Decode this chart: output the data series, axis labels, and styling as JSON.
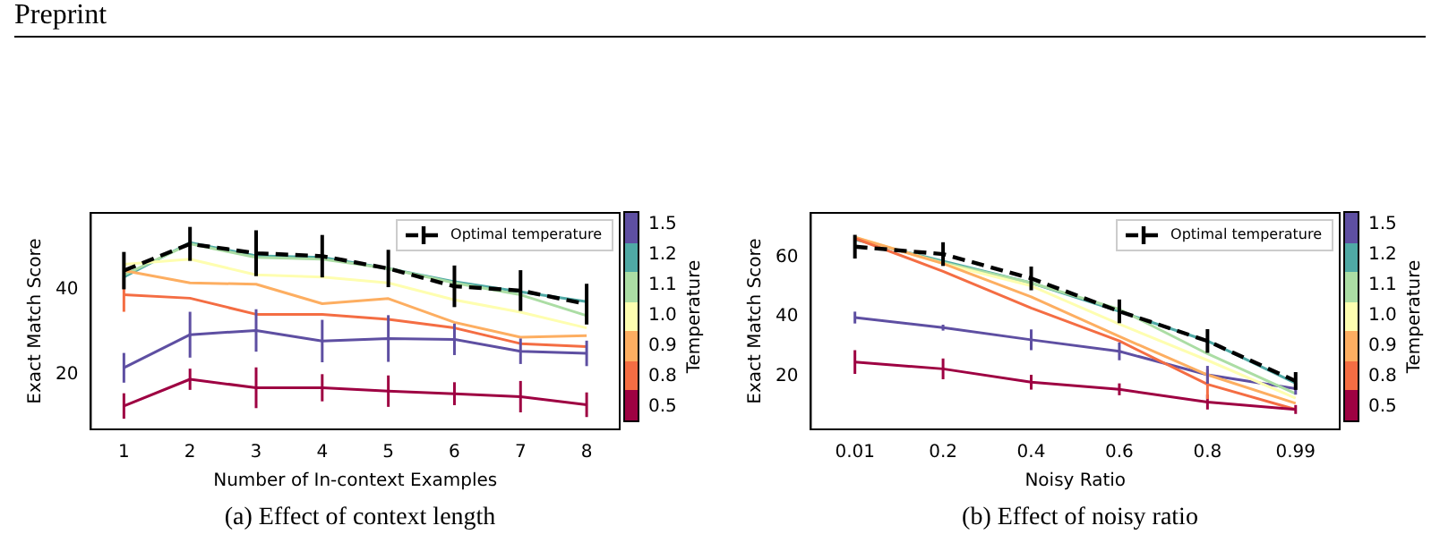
{
  "chart_data": [
    {
      "type": "line",
      "title": "(a) Effect of context length",
      "annotations": [
        "Preprint"
      ],
      "xlabel": "Number of In-context Examples",
      "ylabel": "Exact Match Score",
      "legend_title": "Temperature",
      "legend": "top right",
      "categories": [
        "1",
        "2",
        "3",
        "4",
        "5",
        "6",
        "7",
        "8"
      ],
      "ylim": [
        7,
        58
      ],
      "yticks": [
        20,
        40
      ],
      "series": [
        {
          "name": "0.5",
          "color": "#9e0142",
          "values": [
            12.5,
            18.8,
            16.8,
            16.8,
            16.0,
            15.4,
            14.7,
            12.8
          ],
          "errors": [
            3,
            2.5,
            4.8,
            3.2,
            3.7,
            2.7,
            3.7,
            2.9
          ]
        },
        {
          "name": "0.8",
          "color": "#f46d43",
          "values": [
            38.7,
            37.9,
            34.1,
            34.1,
            32.9,
            30.9,
            27.2,
            26.5
          ],
          "errors": [
            4,
            null,
            null,
            null,
            null,
            null,
            null,
            null
          ]
        },
        {
          "name": "0.9",
          "color": "#fdae61",
          "values": [
            44.4,
            41.5,
            41.2,
            36.6,
            37.8,
            32.2,
            28.7,
            29.1
          ]
        },
        {
          "name": "1.0",
          "color": "#fefeb0",
          "values": [
            45.9,
            47.1,
            43.4,
            42.9,
            41.5,
            37.5,
            34.6,
            30.9
          ]
        },
        {
          "name": "1.1",
          "color": "#abdda4",
          "values": [
            43.4,
            50.7,
            47.5,
            47.1,
            44.9,
            41.5,
            38.7,
            33.8
          ]
        },
        {
          "name": "1.2",
          "color": "#4fa9a5",
          "values": [
            42.9,
            51.0,
            47.9,
            47.5,
            44.9,
            41.8,
            39.4,
            37.1
          ]
        },
        {
          "name": "1.5",
          "color": "#5e4fa2",
          "values": [
            21.5,
            29.3,
            30.3,
            27.8,
            28.4,
            28.2,
            25.4,
            24.9
          ],
          "errors": [
            3.5,
            5.4,
            5,
            5,
            5.5,
            3.7,
            3,
            3
          ]
        },
        {
          "name": "Optimal temperature",
          "color": "#000000",
          "line_style": "dashed",
          "values": [
            44.4,
            50.7,
            48.5,
            47.8,
            44.9,
            40.7,
            39.7,
            36.5
          ],
          "errors": [
            4.4,
            4,
            5.4,
            5,
            4.4,
            4.9,
            4.8,
            4.8
          ]
        }
      ]
    },
    {
      "type": "line",
      "title": "(b) Effect of noisy ratio",
      "xlabel": "Noisy Ratio",
      "ylabel": "Exact Match Score",
      "legend_title": "Temperature",
      "legend": "top right",
      "categories": [
        "0.01",
        "0.2",
        "0.4",
        "0.6",
        "0.8",
        "0.99"
      ],
      "ylim": [
        2,
        75
      ],
      "yticks": [
        20,
        40,
        60
      ],
      "series": [
        {
          "name": "0.5",
          "color": "#9e0142",
          "values": [
            24.7,
            22.4,
            17.9,
            15.5,
            11.2,
            8.7
          ],
          "errors": [
            4,
            3.5,
            2.5,
            2,
            2.5,
            1.5
          ]
        },
        {
          "name": "0.8",
          "color": "#f46d43",
          "values": [
            66.4,
            55.3,
            42.9,
            31.8,
            17.2,
            8.7
          ],
          "errors": [
            null,
            null,
            null,
            null,
            5,
            null
          ]
        },
        {
          "name": "0.9",
          "color": "#fdae61",
          "values": [
            66.8,
            57.9,
            46.7,
            33.3,
            20.4,
            10.8
          ]
        },
        {
          "name": "1.0",
          "color": "#fefeb0",
          "values": [
            66.8,
            57.9,
            50.4,
            37.5,
            25.3,
            12.5
          ]
        },
        {
          "name": "1.1",
          "color": "#abdda4",
          "values": [
            66.4,
            58.3,
            51.4,
            42.5,
            27.5,
            14.0
          ]
        },
        {
          "name": "1.2",
          "color": "#4fa9a5",
          "values": [
            66.0,
            58.7,
            51.4,
            41.8,
            31.8,
            17.6
          ]
        },
        {
          "name": "1.5",
          "color": "#5e4fa2",
          "values": [
            39.7,
            36.3,
            32.2,
            28.3,
            20.4,
            15.7
          ],
          "errors": [
            2,
            1,
            3.5,
            3,
            3,
            2
          ]
        },
        {
          "name": "Optimal temperature",
          "color": "#000000",
          "line_style": "dashed",
          "values": [
            63.6,
            61.1,
            52.9,
            41.8,
            31.8,
            18.3
          ],
          "errors": [
            4,
            4,
            4,
            4,
            4,
            3
          ]
        }
      ]
    }
  ]
}
